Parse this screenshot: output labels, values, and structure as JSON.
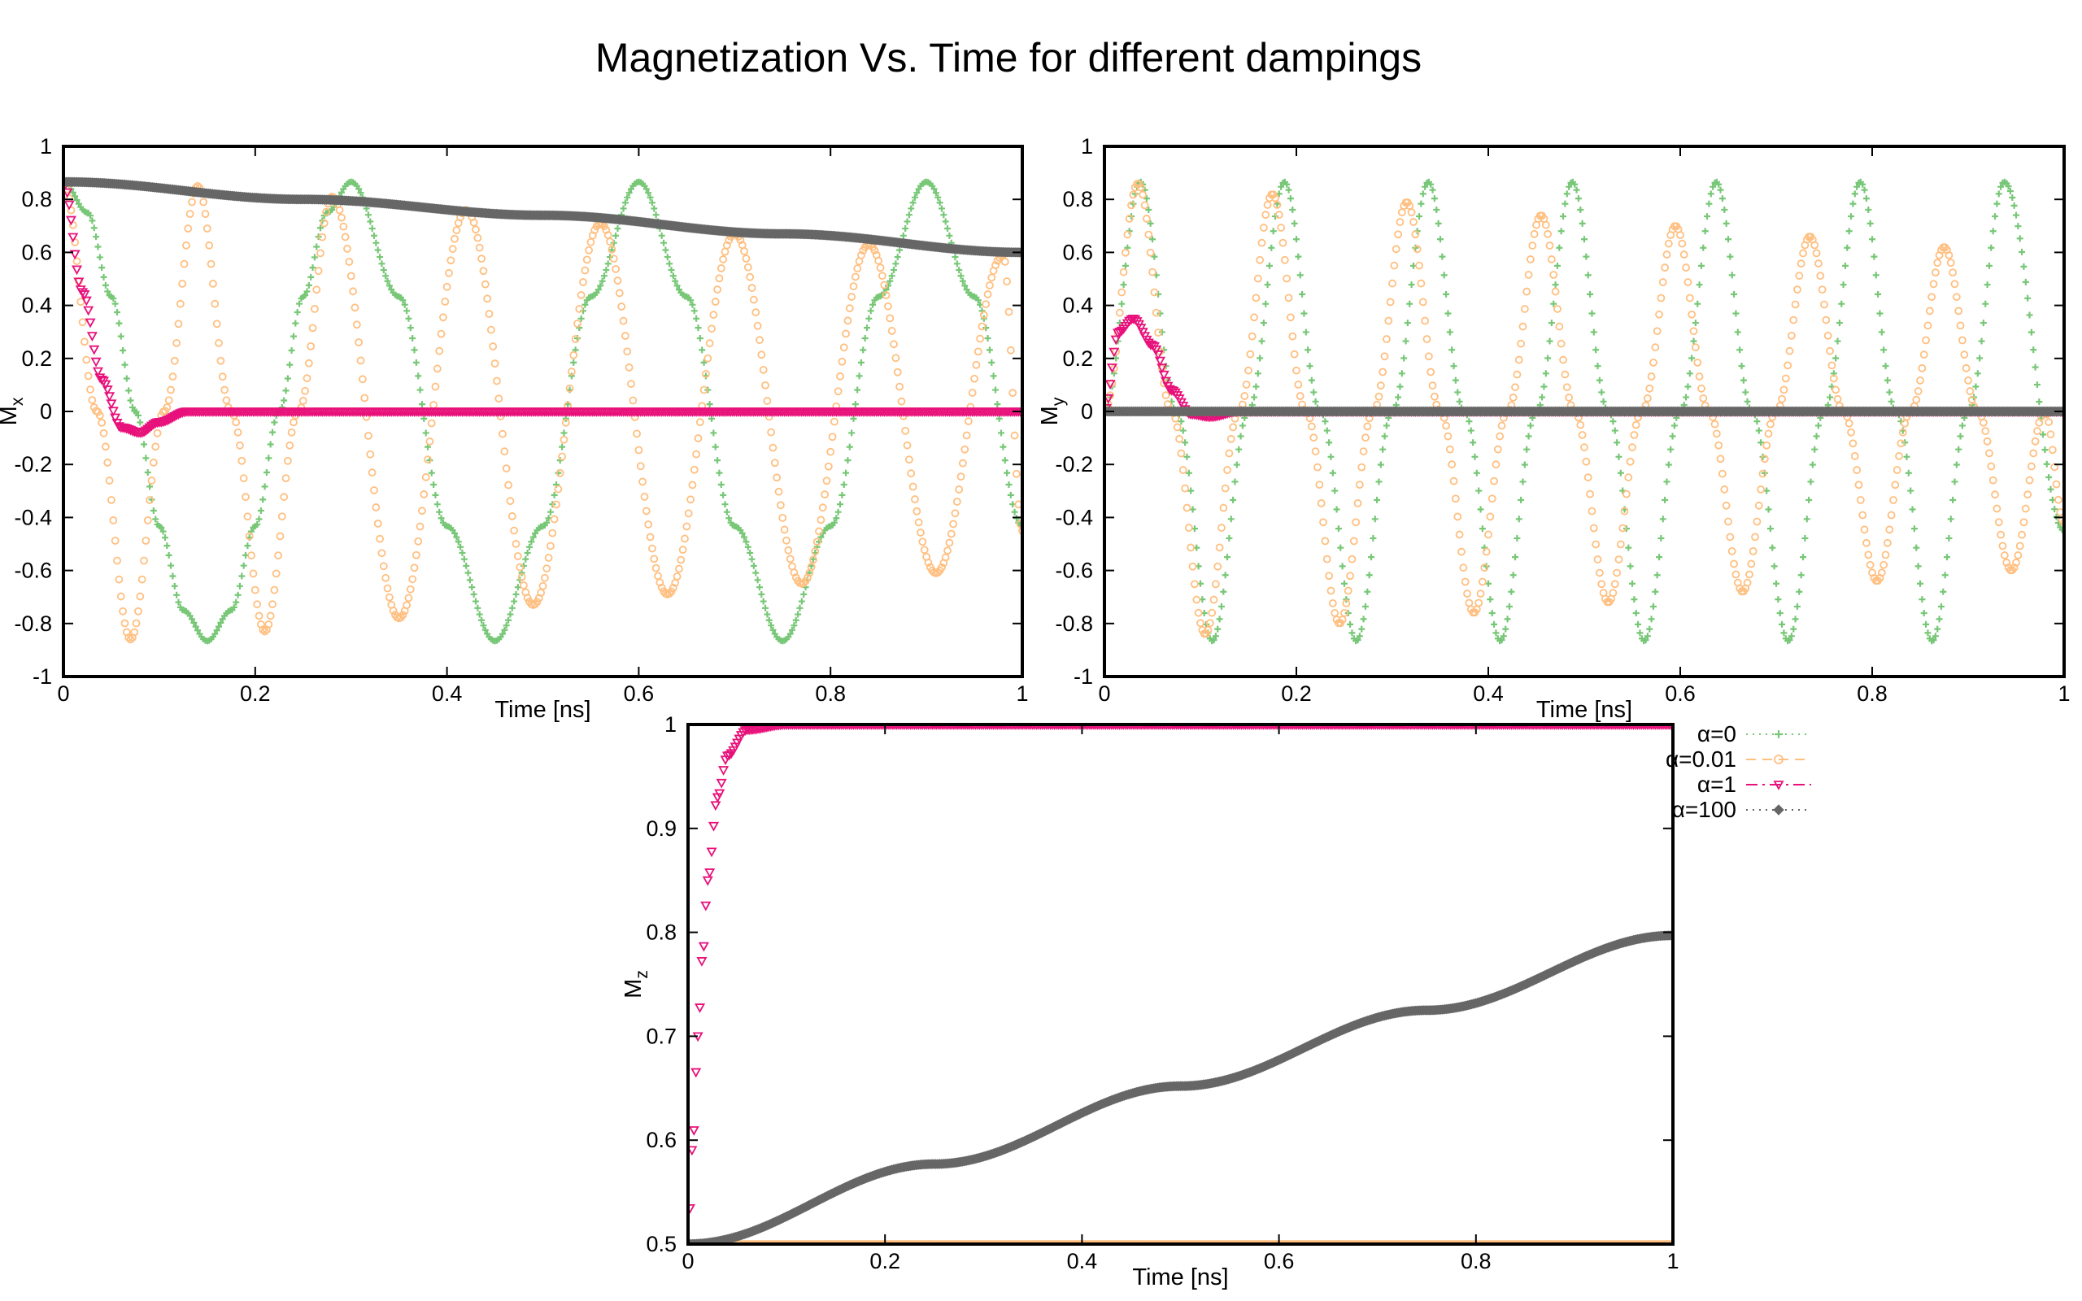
{
  "figure": {
    "title": "Magnetization Vs. Time for different dampings"
  },
  "chart_data": [
    {
      "type": "scatter",
      "id": "mx",
      "xlabel": "Time [ns]",
      "ylabel_main": "M",
      "ylabel_sub": "x",
      "xlim": [
        0,
        1
      ],
      "ylim": [
        -1,
        1
      ],
      "xticks": [
        0,
        0.2,
        0.4,
        0.6,
        0.8,
        1
      ],
      "xtick_labels": [
        "0",
        "0.2",
        "0.4",
        "0.6",
        "0.8",
        "1"
      ],
      "yticks": [
        -1,
        -0.8,
        -0.6,
        -0.4,
        -0.2,
        0,
        0.2,
        0.4,
        0.6,
        0.8,
        1
      ],
      "ytick_labels": [
        "-1",
        "-0.8",
        "-0.6",
        "-0.4",
        "-0.2",
        "0",
        "0.2",
        "0.4",
        "0.6",
        "0.8",
        "1"
      ],
      "series": [
        {
          "name": "α=0",
          "samples": [
            [
              0,
              0.866
            ],
            [
              0.025,
              0.75
            ],
            [
              0.05,
              0.433
            ],
            [
              0.075,
              0.0
            ],
            [
              0.1,
              -0.433
            ],
            [
              0.125,
              -0.75
            ],
            [
              0.15,
              -0.866
            ],
            [
              0.175,
              -0.75
            ],
            [
              0.2,
              -0.433
            ],
            [
              0.225,
              0.0
            ],
            [
              0.25,
              0.433
            ],
            [
              0.275,
              0.75
            ],
            [
              0.3,
              0.866
            ],
            [
              0.35,
              0.433
            ],
            [
              0.4,
              -0.433
            ],
            [
              0.45,
              -0.866
            ],
            [
              0.5,
              -0.433
            ],
            [
              0.55,
              0.433
            ],
            [
              0.6,
              0.866
            ],
            [
              0.65,
              0.433
            ],
            [
              0.7,
              -0.433
            ],
            [
              0.75,
              -0.866
            ],
            [
              0.8,
              -0.433
            ],
            [
              0.85,
              0.433
            ],
            [
              0.9,
              0.866
            ],
            [
              0.95,
              0.433
            ],
            [
              1.0,
              -0.433
            ]
          ]
        },
        {
          "name": "α=0.01",
          "samples": [
            [
              0,
              0.866
            ],
            [
              0.035,
              0.0
            ],
            [
              0.07,
              -0.86
            ],
            [
              0.105,
              0.0
            ],
            [
              0.14,
              0.85
            ],
            [
              0.175,
              0.0
            ],
            [
              0.21,
              -0.83
            ],
            [
              0.245,
              0.0
            ],
            [
              0.28,
              0.81
            ],
            [
              0.35,
              -0.78
            ],
            [
              0.42,
              0.76
            ],
            [
              0.49,
              -0.73
            ],
            [
              0.56,
              0.71
            ],
            [
              0.63,
              -0.69
            ],
            [
              0.7,
              0.67
            ],
            [
              0.77,
              -0.65
            ],
            [
              0.84,
              0.63
            ],
            [
              0.91,
              -0.61
            ],
            [
              0.98,
              0.59
            ],
            [
              1.0,
              -0.45
            ]
          ]
        },
        {
          "name": "α=1",
          "samples": [
            [
              0,
              0.866
            ],
            [
              0.02,
              0.45
            ],
            [
              0.04,
              0.12
            ],
            [
              0.06,
              -0.06
            ],
            [
              0.08,
              -0.08
            ],
            [
              0.1,
              -0.04
            ],
            [
              0.13,
              0.0
            ],
            [
              0.2,
              0.0
            ],
            [
              1.0,
              0.0
            ]
          ]
        },
        {
          "name": "α=100",
          "samples": [
            [
              0,
              0.866
            ],
            [
              0.25,
              0.8
            ],
            [
              0.5,
              0.74
            ],
            [
              0.75,
              0.67
            ],
            [
              1.0,
              0.6
            ]
          ]
        }
      ]
    },
    {
      "type": "scatter",
      "id": "my",
      "xlabel": "Time [ns]",
      "ylabel_main": "M",
      "ylabel_sub": "y",
      "xlim": [
        0,
        1
      ],
      "ylim": [
        -1,
        1
      ],
      "xticks": [
        0,
        0.2,
        0.4,
        0.6,
        0.8,
        1
      ],
      "xtick_labels": [
        "0",
        "0.2",
        "0.4",
        "0.6",
        "0.8",
        "1"
      ],
      "yticks": [
        -1,
        -0.8,
        -0.6,
        -0.4,
        -0.2,
        0,
        0.2,
        0.4,
        0.6,
        0.8,
        1
      ],
      "ytick_labels": [
        "-1",
        "-0.8",
        "-0.6",
        "-0.4",
        "-0.2",
        "0",
        "0.2",
        "0.4",
        "0.6",
        "0.8",
        "1"
      ],
      "series": [
        {
          "name": "α=0",
          "samples": [
            [
              0,
              0.0
            ],
            [
              0.0375,
              0.866
            ],
            [
              0.075,
              0.0
            ],
            [
              0.1125,
              -0.866
            ],
            [
              0.15,
              0.0
            ],
            [
              0.1875,
              0.866
            ],
            [
              0.225,
              0.0
            ],
            [
              0.2625,
              -0.866
            ],
            [
              0.3,
              0.0
            ],
            [
              0.3375,
              0.866
            ],
            [
              0.375,
              0.0
            ],
            [
              0.4125,
              -0.866
            ],
            [
              0.45,
              0.0
            ],
            [
              0.4875,
              0.866
            ],
            [
              0.525,
              0.0
            ],
            [
              0.5625,
              -0.866
            ],
            [
              0.6,
              0.0
            ],
            [
              0.6375,
              0.866
            ],
            [
              0.675,
              0.0
            ],
            [
              0.7125,
              -0.866
            ],
            [
              0.75,
              0.0
            ],
            [
              0.7875,
              0.866
            ],
            [
              0.825,
              0.0
            ],
            [
              0.8625,
              -0.866
            ],
            [
              0.9,
              0.0
            ],
            [
              0.9375,
              0.866
            ],
            [
              1.0,
              -0.45
            ]
          ]
        },
        {
          "name": "α=0.01",
          "samples": [
            [
              0,
              0.0
            ],
            [
              0.035,
              0.86
            ],
            [
              0.07,
              0.0
            ],
            [
              0.105,
              -0.84
            ],
            [
              0.14,
              0.0
            ],
            [
              0.175,
              0.82
            ],
            [
              0.21,
              0.0
            ],
            [
              0.245,
              -0.8
            ],
            [
              0.28,
              0.0
            ],
            [
              0.315,
              0.79
            ],
            [
              0.35,
              0.0
            ],
            [
              0.385,
              -0.76
            ],
            [
              0.42,
              0.0
            ],
            [
              0.455,
              0.74
            ],
            [
              0.49,
              0.0
            ],
            [
              0.525,
              -0.72
            ],
            [
              0.56,
              0.0
            ],
            [
              0.595,
              0.7
            ],
            [
              0.63,
              0.0
            ],
            [
              0.665,
              -0.68
            ],
            [
              0.7,
              0.0
            ],
            [
              0.735,
              0.66
            ],
            [
              0.77,
              0.0
            ],
            [
              0.805,
              -0.64
            ],
            [
              0.84,
              0.0
            ],
            [
              0.875,
              0.62
            ],
            [
              0.91,
              0.0
            ],
            [
              0.945,
              -0.6
            ],
            [
              0.98,
              0.0
            ],
            [
              1.0,
              -0.42
            ]
          ]
        },
        {
          "name": "α=1",
          "samples": [
            [
              0,
              0.0
            ],
            [
              0.015,
              0.3
            ],
            [
              0.03,
              0.35
            ],
            [
              0.05,
              0.25
            ],
            [
              0.07,
              0.08
            ],
            [
              0.09,
              -0.01
            ],
            [
              0.11,
              -0.02
            ],
            [
              0.14,
              0.0
            ],
            [
              1.0,
              0.0
            ]
          ]
        },
        {
          "name": "α=100",
          "samples": [
            [
              0,
              0.0
            ],
            [
              1.0,
              0.0
            ]
          ]
        }
      ]
    },
    {
      "type": "scatter",
      "id": "mz",
      "xlabel": "Time [ns]",
      "ylabel_main": "M",
      "ylabel_sub": "z",
      "xlim": [
        0,
        1
      ],
      "ylim": [
        0.5,
        1
      ],
      "xticks": [
        0,
        0.2,
        0.4,
        0.6,
        0.8,
        1
      ],
      "xtick_labels": [
        "0",
        "0.2",
        "0.4",
        "0.6",
        "0.8",
        "1"
      ],
      "yticks": [
        0.5,
        0.6,
        0.7,
        0.8,
        0.9,
        1
      ],
      "ytick_labels": [
        "0.5",
        "0.6",
        "0.7",
        "0.8",
        "0.9",
        "1"
      ],
      "series": [
        {
          "name": "α=0",
          "samples": [
            [
              0,
              0.5
            ],
            [
              1.0,
              0.5
            ]
          ]
        },
        {
          "name": "α=0.01",
          "samples": [
            [
              0,
              0.5
            ],
            [
              1.0,
              0.5
            ]
          ]
        },
        {
          "name": "α=1",
          "samples": [
            [
              0,
              0.5
            ],
            [
              0.005,
              0.6
            ],
            [
              0.01,
              0.7
            ],
            [
              0.015,
              0.78
            ],
            [
              0.02,
              0.85
            ],
            [
              0.03,
              0.93
            ],
            [
              0.04,
              0.97
            ],
            [
              0.06,
              0.995
            ],
            [
              0.1,
              1.0
            ],
            [
              1.0,
              1.0
            ]
          ]
        },
        {
          "name": "α=100",
          "samples": [
            [
              0,
              0.5
            ],
            [
              0.25,
              0.577
            ],
            [
              0.5,
              0.652
            ],
            [
              0.75,
              0.725
            ],
            [
              1.0,
              0.797
            ]
          ]
        }
      ]
    }
  ],
  "legend": {
    "placement": "right of bottom panel",
    "entries": [
      {
        "label": "α=0",
        "color": "#77c777",
        "marker": "plus"
      },
      {
        "label": "α=0.01",
        "color": "#ffbf80",
        "marker": "circle"
      },
      {
        "label": "α=1",
        "color": "#e8107a",
        "marker": "triangle-down"
      },
      {
        "label": "α=100",
        "color": "#666666",
        "marker": "diamond"
      }
    ]
  },
  "colors": {
    "alpha0": "#77c777",
    "alpha001": "#ffbf80",
    "alpha1": "#e8107a",
    "alpha100": "#666666"
  }
}
